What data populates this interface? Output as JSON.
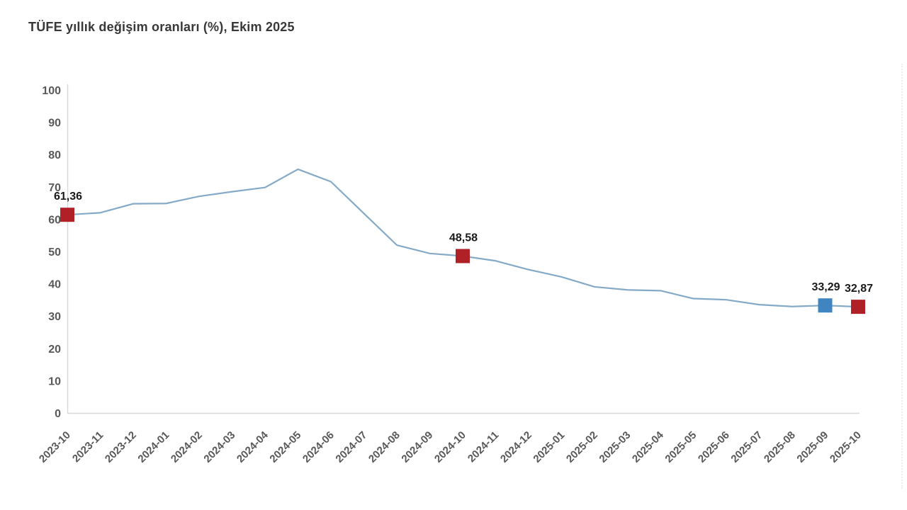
{
  "title": "TÜFE yıllık değişim oranları (%), Ekim 2025",
  "chart_data": {
    "type": "line",
    "title": "TÜFE yıllık değişim oranları (%), Ekim 2025",
    "categories": [
      "2023-10",
      "2023-11",
      "2023-12",
      "2024-01",
      "2024-02",
      "2024-03",
      "2024-04",
      "2024-05",
      "2024-06",
      "2024-07",
      "2024-08",
      "2024-09",
      "2024-10",
      "2024-11",
      "2024-12",
      "2025-01",
      "2025-02",
      "2025-03",
      "2025-04",
      "2025-05",
      "2025-06",
      "2025-07",
      "2025-08",
      "2025-09",
      "2025-10"
    ],
    "series": [
      {
        "name": "TÜFE yıllık değişim oranı (%)",
        "values": [
          61.36,
          61.98,
          64.77,
          64.86,
          67.07,
          68.5,
          69.8,
          75.45,
          71.6,
          61.78,
          51.97,
          49.38,
          48.58,
          47.09,
          44.38,
          42.12,
          39.05,
          38.1,
          37.86,
          35.41,
          35.05,
          33.52,
          32.95,
          33.29,
          32.87
        ]
      }
    ],
    "xlabel": "",
    "ylabel": "",
    "ylim": [
      0,
      100
    ],
    "ytick_step": 10,
    "grid": false,
    "legend_position": "none",
    "highlights": [
      {
        "index": 0,
        "label": "61,36",
        "color": "#b02127"
      },
      {
        "index": 12,
        "label": "48,58",
        "color": "#b02127"
      },
      {
        "index": 23,
        "label": "33,29",
        "color": "#3e85c1"
      },
      {
        "index": 24,
        "label": "32,87",
        "color": "#b02127"
      }
    ],
    "colors": {
      "line": "#85aac8",
      "axis": "#d8d8d8",
      "tick_label": "#595959",
      "data_label": "#1a1a1a",
      "background": "#ffffff"
    }
  }
}
